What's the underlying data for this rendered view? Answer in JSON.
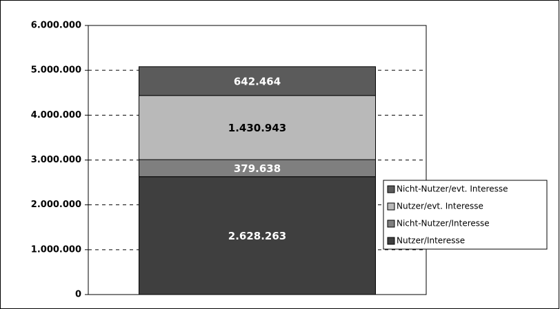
{
  "chart_data": {
    "type": "stacked_bar",
    "categories": [
      null
    ],
    "series": [
      {
        "name": "Nutzer/Interesse",
        "color": "#3f3f3f",
        "values": [
          2628263
        ],
        "value_labels": [
          "2.628.263"
        ]
      },
      {
        "name": "Nicht-Nutzer/Interesse",
        "color": "#7f7f7f",
        "values": [
          379638
        ],
        "value_labels": [
          "379.638"
        ]
      },
      {
        "name": "Nutzer/evt. Interesse",
        "color": "#b9b9b9",
        "values": [
          1430943
        ],
        "value_labels": [
          "1.430.943"
        ]
      },
      {
        "name": "Nicht-Nutzer/evt. Interesse",
        "color": "#5b5b5b",
        "values": [
          642464
        ],
        "value_labels": [
          "642.464"
        ]
      }
    ],
    "ylim": [
      0,
      6000000
    ],
    "yticks": [
      0,
      {
        "value": 1000000,
        "label": "1.000.000"
      },
      {
        "value": 2000000,
        "label": "2.000.000"
      },
      {
        "value": 3000000,
        "label": "3.000.000"
      },
      {
        "value": 4000000,
        "label": "4.000.000"
      },
      {
        "value": 5000000,
        "label": "5.000.000"
      },
      {
        "value": 6000000,
        "label": "6.000.000"
      }
    ],
    "grid": true,
    "legend": "right"
  }
}
